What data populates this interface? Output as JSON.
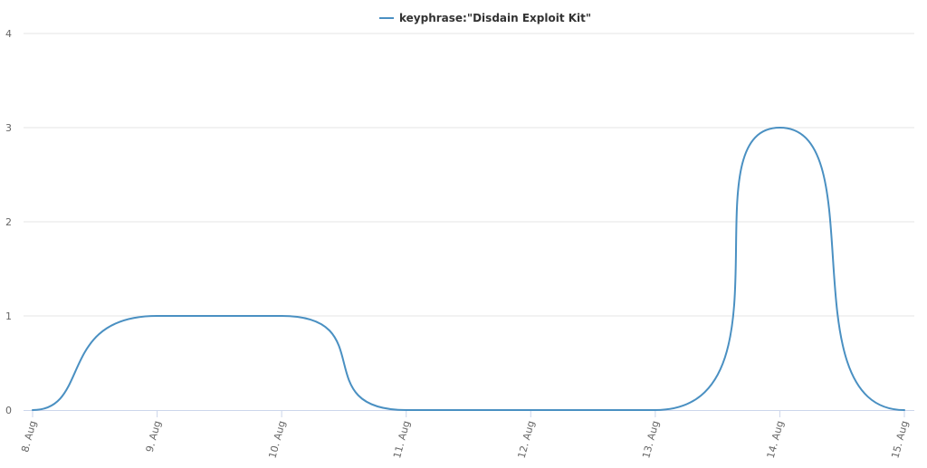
{
  "chart_data": {
    "type": "line",
    "title": "",
    "xlabel": "",
    "ylabel": "",
    "categories": [
      "8. Aug",
      "9. Aug",
      "10. Aug",
      "11. Aug",
      "12. Aug",
      "13. Aug",
      "14. Aug",
      "15. Aug"
    ],
    "series": [
      {
        "name": "keyphrase:\"Disdain Exploit Kit\"",
        "values": [
          0,
          1,
          1,
          0,
          0,
          0,
          3,
          0
        ],
        "color": "#4a90c2"
      }
    ],
    "ylim": [
      0,
      4
    ],
    "yticks": [
      0,
      1,
      2,
      3,
      4
    ],
    "grid": true,
    "legend": "top-center",
    "smooth": true
  }
}
